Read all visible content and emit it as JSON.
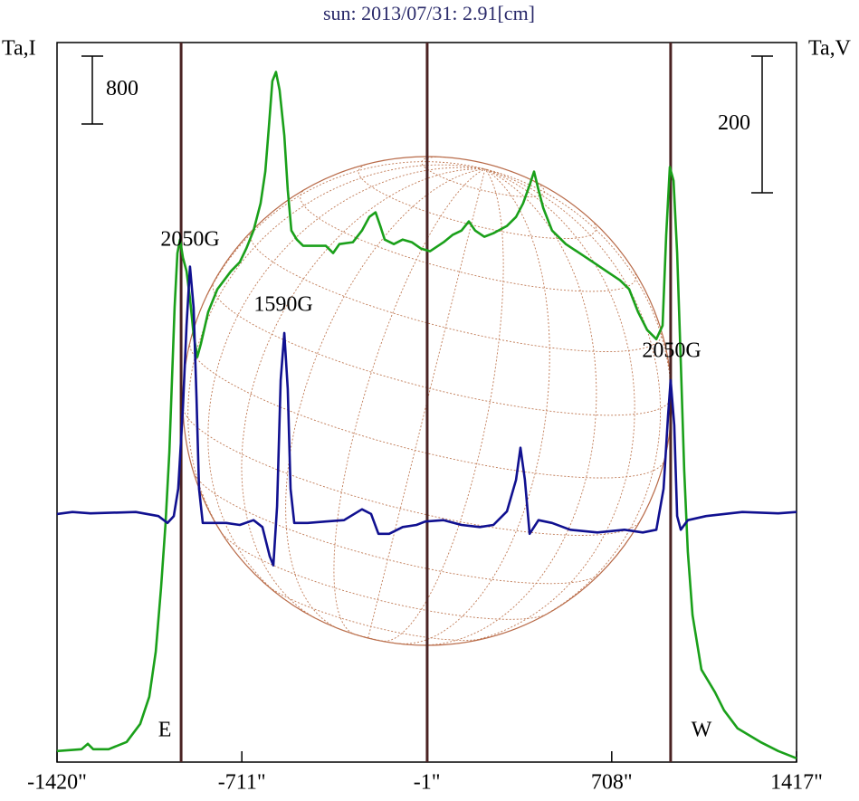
{
  "chart_data": {
    "type": "line",
    "title": "sun: 2013/07/31: 2.91[cm]",
    "ylabel": "Ta,I",
    "y2label": "Ta,V",
    "xlim": [
      -1420,
      1417
    ],
    "xticks": [
      {
        "value": -1420,
        "label": "-1420\""
      },
      {
        "value": -711,
        "label": "-711\""
      },
      {
        "value": -1,
        "label": "-1\""
      },
      {
        "value": 708,
        "label": "708\""
      },
      {
        "value": 1417,
        "label": "1417\""
      }
    ],
    "ylim": [
      -130,
      8350
    ],
    "y2lim": [
      -363,
      690
    ],
    "scale_bars": [
      {
        "value": 800,
        "axis": "y"
      },
      {
        "value": 200,
        "axis": "y2"
      }
    ],
    "markers": [
      {
        "x": -944,
        "label": "E"
      },
      {
        "x": 0
      },
      {
        "x": 934,
        "label": "W"
      }
    ],
    "annotations": [
      "2050G",
      "1590G",
      "2050G"
    ],
    "series": [
      {
        "color": "#1aa01a",
        "x": [
          -1420,
          -1326,
          -1302,
          -1281,
          -1222,
          -1153,
          -1101,
          -1066,
          -1041,
          -1021,
          -1004,
          -989,
          -979,
          -969,
          -958,
          -948,
          -937,
          -923,
          -910,
          -896,
          -882,
          -868,
          -840,
          -805,
          -753,
          -719,
          -694,
          -666,
          -639,
          -621,
          -607,
          -594,
          -580,
          -566,
          -548,
          -535,
          -521,
          -500,
          -476,
          -389,
          -361,
          -337,
          -285,
          -250,
          -222,
          -198,
          -180,
          -163,
          -128,
          -94,
          -59,
          -24,
          11,
          63,
          97,
          132,
          160,
          184,
          219,
          254,
          306,
          341,
          368,
          393,
          410,
          427,
          445,
          479,
          532,
          584,
          636,
          688,
          740,
          775,
          809,
          844,
          879,
          903,
          917,
          931,
          945,
          959,
          973,
          986,
          1000,
          1018,
          1052,
          1104,
          1139,
          1191,
          1278,
          1347,
          1417
        ],
        "values": [
          0,
          21,
          85,
          21,
          21,
          107,
          320,
          640,
          1174,
          1921,
          2668,
          3521,
          4375,
          5228,
          5868,
          6028,
          5815,
          5655,
          5335,
          4908,
          4642,
          4802,
          5175,
          5442,
          5655,
          5762,
          5922,
          6135,
          6455,
          6829,
          7362,
          7896,
          8003,
          7789,
          7256,
          6615,
          6135,
          6028,
          5954,
          5954,
          5869,
          5975,
          5997,
          6135,
          6295,
          6349,
          6189,
          6028,
          5975,
          6028,
          5997,
          5922,
          5890,
          5997,
          6082,
          6135,
          6242,
          6135,
          6061,
          6103,
          6189,
          6295,
          6455,
          6669,
          6829,
          6615,
          6402,
          6135,
          5975,
          5869,
          5762,
          5655,
          5548,
          5442,
          5175,
          4962,
          4855,
          5015,
          6082,
          6882,
          6722,
          5869,
          4588,
          3308,
          2347,
          1601,
          960,
          694,
          480,
          267,
          107,
          0,
          -85
        ]
      },
      {
        "color": "#101090",
        "axis": "y2",
        "x": [
          -1420,
          -1361,
          -1292,
          -1118,
          -1031,
          -996,
          -972,
          -955,
          -937,
          -923,
          -910,
          -896,
          -885,
          -875,
          -861,
          -823,
          -771,
          -719,
          -666,
          -632,
          -604,
          -590,
          -576,
          -562,
          -548,
          -535,
          -524,
          -510,
          -458,
          -389,
          -319,
          -250,
          -215,
          -187,
          -146,
          -94,
          -41,
          -7,
          63,
          132,
          202,
          254,
          306,
          341,
          358,
          375,
          393,
          427,
          479,
          549,
          653,
          757,
          827,
          879,
          907,
          924,
          934,
          948,
          959,
          973,
          1000,
          1070,
          1209,
          1347,
          1417
        ],
        "values": [
          0,
          3,
          1,
          3,
          -3,
          -13,
          -3,
          37,
          156,
          276,
          362,
          302,
          170,
          37,
          -13,
          -13,
          -13,
          -16,
          -9,
          -19,
          -62,
          -75,
          11,
          196,
          265,
          183,
          37,
          -13,
          -13,
          -11,
          -9,
          7,
          0,
          -29,
          -29,
          -19,
          -16,
          -11,
          -9,
          -16,
          -19,
          -16,
          4,
          50,
          97,
          50,
          -29,
          -9,
          -13,
          -23,
          -27,
          -23,
          -27,
          -23,
          37,
          143,
          196,
          130,
          -3,
          -23,
          -9,
          -3,
          3,
          1,
          3
        ]
      }
    ]
  }
}
